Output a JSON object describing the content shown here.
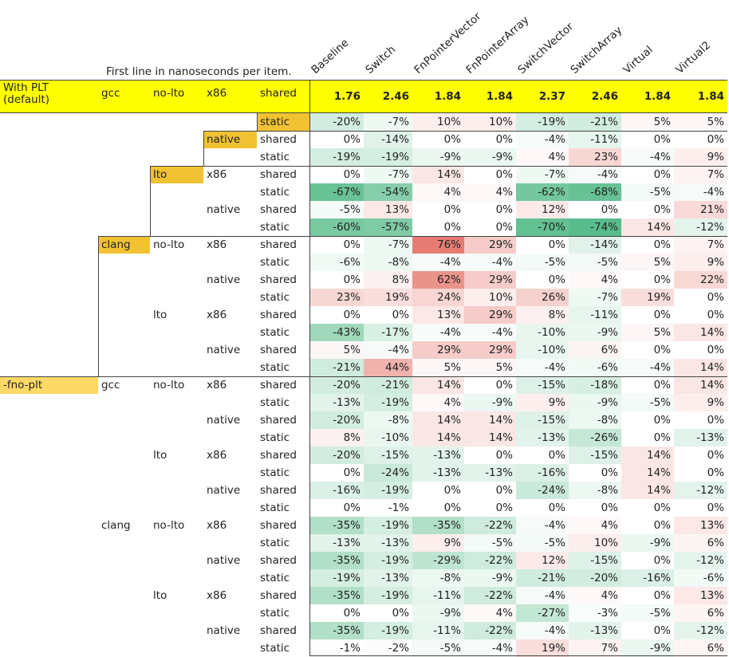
{
  "note": "First line in nanoseconds per item.",
  "columns": [
    "Baseline",
    "Switch",
    "FnPointerVector",
    "FnPointerArray",
    "SwitchVector",
    "SwitchArray",
    "Virtual",
    "Virtual2"
  ],
  "header_row": {
    "plt": "With PLT\n(default)",
    "compiler": "gcc",
    "lto": "no-lto",
    "arch": "x86",
    "link": "shared",
    "values": [
      "1.76",
      "2.46",
      "1.84",
      "1.84",
      "2.37",
      "2.46",
      "1.84",
      "1.84"
    ]
  },
  "rows": [
    {
      "link": "static",
      "values": [
        "-20%",
        "-7%",
        "10%",
        "10%",
        "-19%",
        "-21%",
        "5%",
        "5%"
      ]
    },
    {
      "arch": "native",
      "link": "shared",
      "values": [
        "0%",
        "-14%",
        "0%",
        "0%",
        "-4%",
        "-11%",
        "0%",
        "0%"
      ]
    },
    {
      "link": "static",
      "values": [
        "-19%",
        "-19%",
        "-9%",
        "-9%",
        "4%",
        "23%",
        "-4%",
        "9%"
      ]
    },
    {
      "lto": "lto",
      "arch": "x86",
      "link": "shared",
      "values": [
        "0%",
        "-7%",
        "14%",
        "0%",
        "-7%",
        "-4%",
        "0%",
        "7%"
      ]
    },
    {
      "link": "static",
      "values": [
        "-67%",
        "-54%",
        "4%",
        "4%",
        "-62%",
        "-68%",
        "-5%",
        "-4%"
      ]
    },
    {
      "arch": "native",
      "link": "shared",
      "values": [
        "-5%",
        "13%",
        "0%",
        "0%",
        "12%",
        "0%",
        "0%",
        "21%"
      ]
    },
    {
      "link": "static",
      "values": [
        "-60%",
        "-57%",
        "0%",
        "0%",
        "-70%",
        "-74%",
        "14%",
        "-12%"
      ]
    },
    {
      "compiler": "clang",
      "lto": "no-lto",
      "arch": "x86",
      "link": "shared",
      "values": [
        "0%",
        "-7%",
        "76%",
        "29%",
        "0%",
        "-14%",
        "0%",
        "7%"
      ]
    },
    {
      "link": "static",
      "values": [
        "-6%",
        "-8%",
        "-4%",
        "-4%",
        "-5%",
        "-5%",
        "5%",
        "9%"
      ]
    },
    {
      "arch": "native",
      "link": "shared",
      "values": [
        "0%",
        "8%",
        "62%",
        "29%",
        "0%",
        "4%",
        "0%",
        "22%"
      ]
    },
    {
      "link": "static",
      "values": [
        "23%",
        "19%",
        "24%",
        "10%",
        "26%",
        "-7%",
        "19%",
        "0%"
      ]
    },
    {
      "lto": "lto",
      "arch": "x86",
      "link": "shared",
      "values": [
        "0%",
        "0%",
        "13%",
        "29%",
        "8%",
        "-11%",
        "0%",
        "0%"
      ]
    },
    {
      "link": "static",
      "values": [
        "-43%",
        "-17%",
        "-4%",
        "-4%",
        "-10%",
        "-9%",
        "5%",
        "14%"
      ]
    },
    {
      "arch": "native",
      "link": "shared",
      "values": [
        "5%",
        "-4%",
        "29%",
        "29%",
        "-10%",
        "6%",
        "0%",
        "0%"
      ]
    },
    {
      "link": "static",
      "values": [
        "-21%",
        "44%",
        "5%",
        "5%",
        "-4%",
        "-6%",
        "-4%",
        "14%"
      ]
    },
    {
      "plt": "-fno-plt",
      "compiler": "gcc",
      "lto": "no-lto",
      "arch": "x86",
      "link": "shared",
      "values": [
        "-20%",
        "-21%",
        "14%",
        "0%",
        "-15%",
        "-18%",
        "0%",
        "14%"
      ]
    },
    {
      "link": "static",
      "values": [
        "-13%",
        "-19%",
        "4%",
        "-9%",
        "9%",
        "-9%",
        "-5%",
        "9%"
      ]
    },
    {
      "arch": "native",
      "link": "shared",
      "values": [
        "-20%",
        "-8%",
        "14%",
        "14%",
        "-15%",
        "-8%",
        "0%",
        "0%"
      ]
    },
    {
      "link": "static",
      "values": [
        "8%",
        "-10%",
        "14%",
        "14%",
        "-13%",
        "-26%",
        "0%",
        "-13%"
      ]
    },
    {
      "lto": "lto",
      "arch": "x86",
      "link": "shared",
      "values": [
        "-20%",
        "-15%",
        "-13%",
        "0%",
        "0%",
        "-15%",
        "14%",
        "0%"
      ]
    },
    {
      "link": "static",
      "values": [
        "0%",
        "-24%",
        "-13%",
        "-13%",
        "-16%",
        "0%",
        "14%",
        "0%"
      ]
    },
    {
      "arch": "native",
      "link": "shared",
      "values": [
        "-16%",
        "-19%",
        "0%",
        "0%",
        "-24%",
        "-8%",
        "14%",
        "-12%"
      ]
    },
    {
      "link": "static",
      "values": [
        "0%",
        "-1%",
        "0%",
        "0%",
        "0%",
        "0%",
        "0%",
        "0%"
      ]
    },
    {
      "compiler": "clang",
      "lto": "no-lto",
      "arch": "x86",
      "link": "shared",
      "values": [
        "-35%",
        "-19%",
        "-35%",
        "-22%",
        "-4%",
        "4%",
        "0%",
        "13%"
      ]
    },
    {
      "link": "static",
      "values": [
        "-13%",
        "-13%",
        "9%",
        "-5%",
        "-5%",
        "10%",
        "-9%",
        "6%"
      ]
    },
    {
      "arch": "native",
      "link": "shared",
      "values": [
        "-35%",
        "-19%",
        "-29%",
        "-22%",
        "12%",
        "-15%",
        "0%",
        "-12%"
      ]
    },
    {
      "link": "static",
      "values": [
        "-19%",
        "-13%",
        "-8%",
        "-9%",
        "-21%",
        "-20%",
        "-16%",
        "-6%"
      ]
    },
    {
      "lto": "lto",
      "arch": "x86",
      "link": "shared",
      "values": [
        "-35%",
        "-19%",
        "-11%",
        "-22%",
        "-4%",
        "4%",
        "0%",
        "13%"
      ]
    },
    {
      "link": "static",
      "values": [
        "0%",
        "0%",
        "-9%",
        "4%",
        "-27%",
        "-3%",
        "-5%",
        "6%"
      ]
    },
    {
      "arch": "native",
      "link": "shared",
      "values": [
        "-35%",
        "-19%",
        "-11%",
        "-22%",
        "-4%",
        "-13%",
        "0%",
        "-12%"
      ]
    },
    {
      "link": "static",
      "values": [
        "-1%",
        "-2%",
        "-5%",
        "-4%",
        "19%",
        "7%",
        "-9%",
        "6%"
      ]
    }
  ]
}
